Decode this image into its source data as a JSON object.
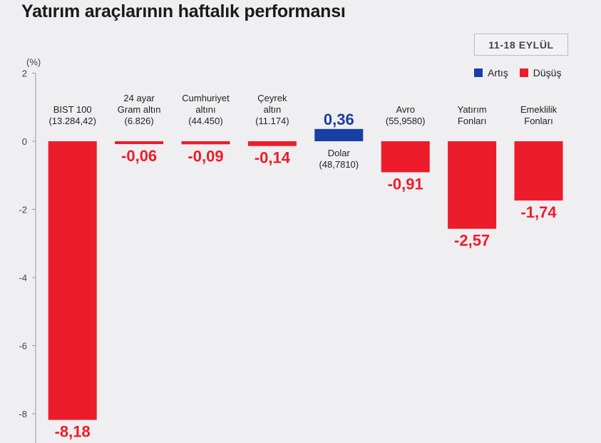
{
  "title": "Yatırım araçlarının haftalık performansı",
  "date_range": "11-18 EYLÜL",
  "legend": [
    {
      "label": "Artış",
      "color": "#1a3fa3"
    },
    {
      "label": "Düşüş",
      "color": "#ec1c2a"
    }
  ],
  "chart_data": {
    "type": "bar",
    "title": "Yatırım araçlarının haftalık performansı",
    "ylabel": "(%)",
    "ylim": [
      -8.6,
      2
    ],
    "yticks": [
      2,
      0,
      -2,
      -4,
      -6,
      -8
    ],
    "grid": false,
    "legend_position": "top-right",
    "categories": [
      [
        "BIST 100",
        "(13.284,42)"
      ],
      [
        "24 ayar",
        "Gram altın",
        "(6.826)"
      ],
      [
        "Cumhuriyet",
        "altını",
        "(44.450)"
      ],
      [
        "Çeyrek",
        "altın",
        "(11.174)"
      ],
      [
        "Dolar",
        "(48,7810)"
      ],
      [
        "Avro",
        "(55,9580)"
      ],
      [
        "Yatırım",
        "Fonları"
      ],
      [
        "Emeklilik",
        "Fonları"
      ]
    ],
    "values": [
      -8.18,
      -0.06,
      -0.09,
      -0.14,
      0.36,
      -0.91,
      -2.57,
      -1.74
    ],
    "value_labels": [
      "-8,18",
      "-0,06",
      "-0,09",
      "-0,14",
      "0,36",
      "-0,91",
      "-2,57",
      "-1,74"
    ],
    "tick_labels": [
      "2",
      "0",
      "-2",
      "-4",
      "-6",
      "-8"
    ],
    "colors": {
      "up": "#1a3fa3",
      "down": "#ec1c2a"
    }
  }
}
